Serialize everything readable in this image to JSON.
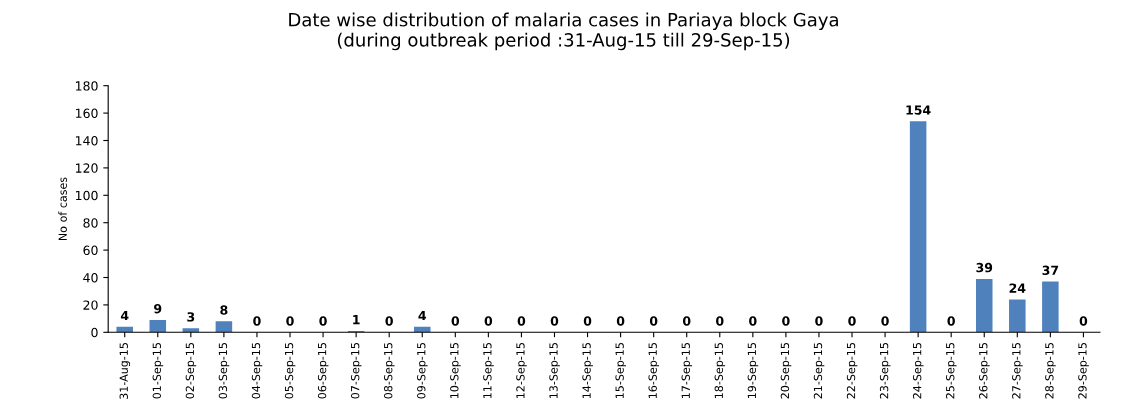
{
  "chart_data": {
    "type": "bar",
    "title": "Date wise distribution of malaria cases in Pariaya block Gaya\n(during outbreak period :31-Aug-15 till 29-Sep-15)",
    "ylabel": "No of cases",
    "categories": [
      "31-Aug-15",
      "01-Sep-15",
      "02-Sep-15",
      "03-Sep-15",
      "04-Sep-15",
      "05-Sep-15",
      "06-Sep-15",
      "07-Sep-15",
      "08-Sep-15",
      "09-Sep-15",
      "10-Sep-15",
      "11-Sep-15",
      "12-Sep-15",
      "13-Sep-15",
      "14-Sep-15",
      "15-Sep-15",
      "16-Sep-15",
      "17-Sep-15",
      "18-Sep-15",
      "19-Sep-15",
      "20-Sep-15",
      "21-Sep-15",
      "22-Sep-15",
      "23-Sep-15",
      "24-Sep-15",
      "25-Sep-15",
      "26-Sep-15",
      "27-Sep-15",
      "28-Sep-15",
      "29-Sep-15"
    ],
    "values": [
      4,
      9,
      3,
      8,
      0,
      0,
      0,
      1,
      0,
      4,
      0,
      0,
      0,
      0,
      0,
      0,
      0,
      0,
      0,
      0,
      0,
      0,
      0,
      0,
      154,
      0,
      39,
      24,
      37,
      0
    ],
    "color": "#4f81bd",
    "ylim": [
      0,
      180
    ],
    "yticks": [
      0,
      20,
      40,
      60,
      80,
      100,
      120,
      140,
      160,
      180
    ],
    "grid": false,
    "legend": false,
    "data_labels": true
  }
}
